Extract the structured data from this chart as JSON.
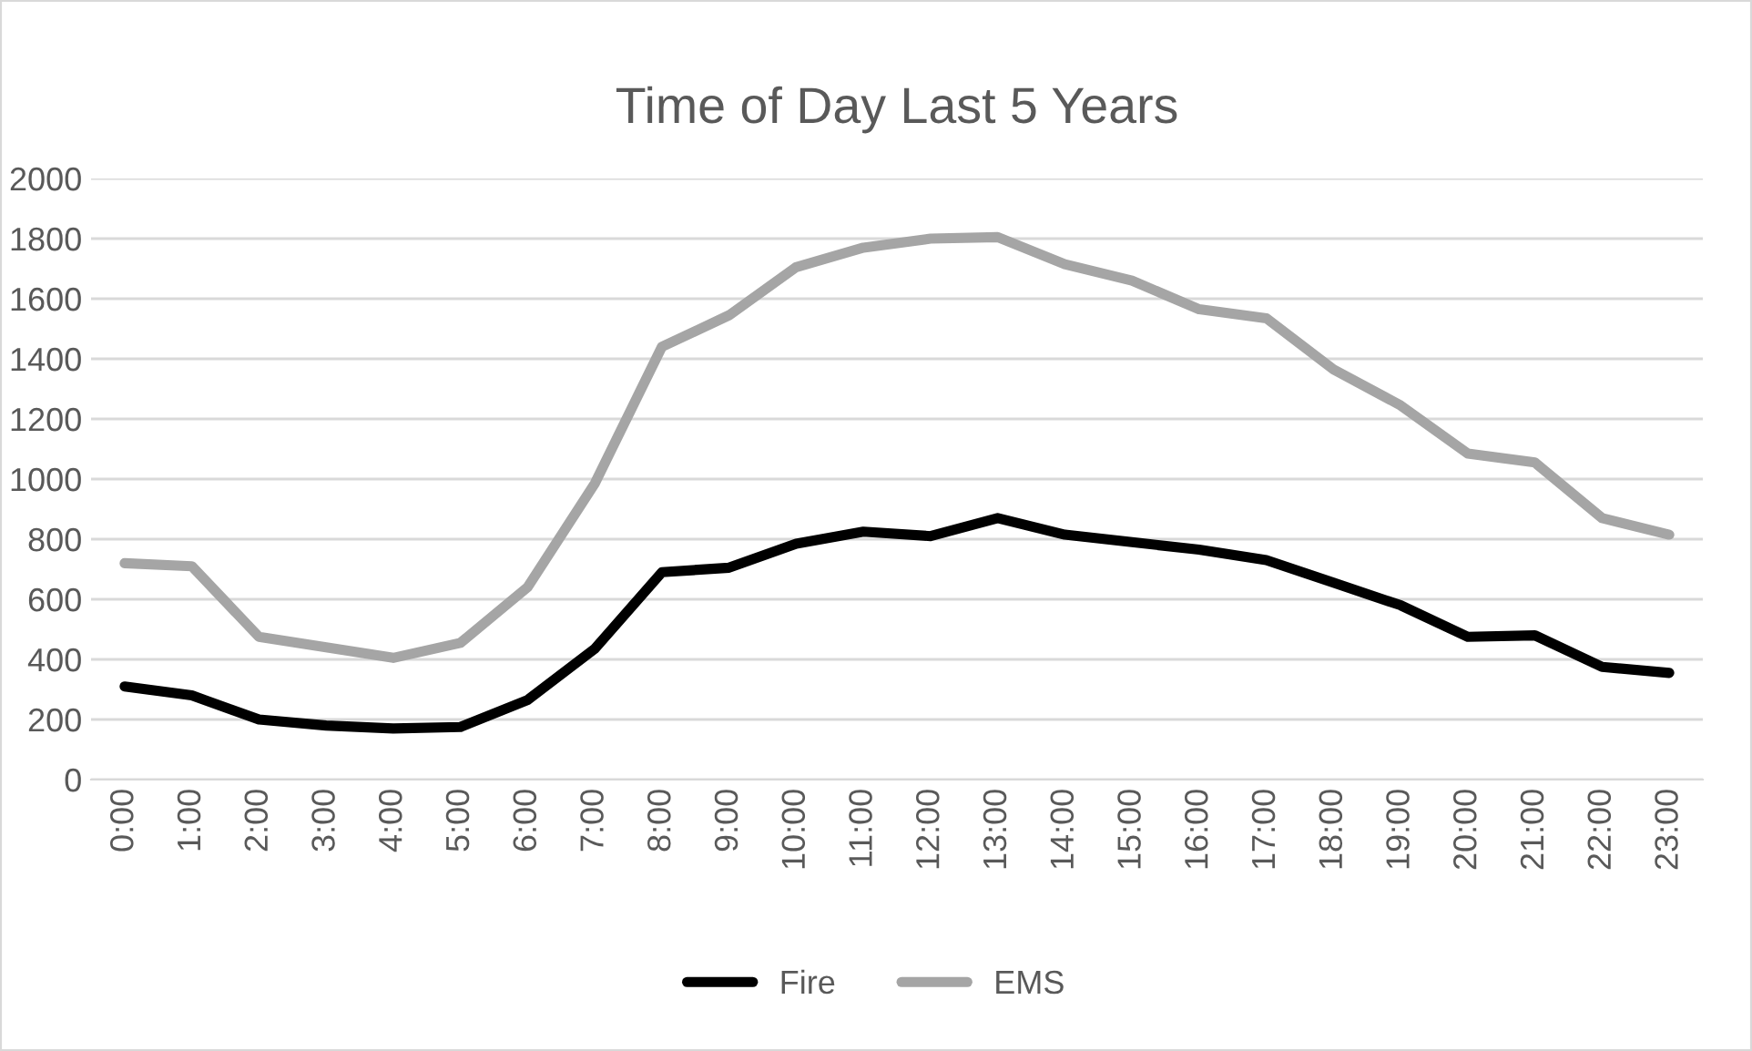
{
  "chart_data": {
    "type": "line",
    "title": "Time of Day Last 5 Years",
    "categories": [
      "0:00",
      "1:00",
      "2:00",
      "3:00",
      "4:00",
      "5:00",
      "6:00",
      "7:00",
      "8:00",
      "9:00",
      "10:00",
      "11:00",
      "12:00",
      "13:00",
      "14:00",
      "15:00",
      "16:00",
      "17:00",
      "18:00",
      "19:00",
      "20:00",
      "21:00",
      "22:00",
      "23:00"
    ],
    "series": [
      {
        "name": "Fire",
        "color": "#000000",
        "values": [
          310,
          280,
          200,
          180,
          170,
          175,
          265,
          435,
          690,
          705,
          785,
          825,
          810,
          870,
          815,
          790,
          765,
          730,
          655,
          580,
          475,
          480,
          375,
          355
        ]
      },
      {
        "name": "EMS",
        "color": "#a5a5a5",
        "values": [
          720,
          710,
          475,
          440,
          405,
          455,
          640,
          985,
          1440,
          1545,
          1705,
          1770,
          1800,
          1805,
          1715,
          1660,
          1565,
          1535,
          1365,
          1245,
          1085,
          1055,
          870,
          815
        ]
      }
    ],
    "ylim": [
      0,
      2000
    ],
    "yticks": [
      0,
      200,
      400,
      600,
      800,
      1000,
      1200,
      1400,
      1600,
      1800,
      2000
    ],
    "grid": "y",
    "legend": "bottom",
    "marker": "none",
    "line_style": "solid"
  }
}
